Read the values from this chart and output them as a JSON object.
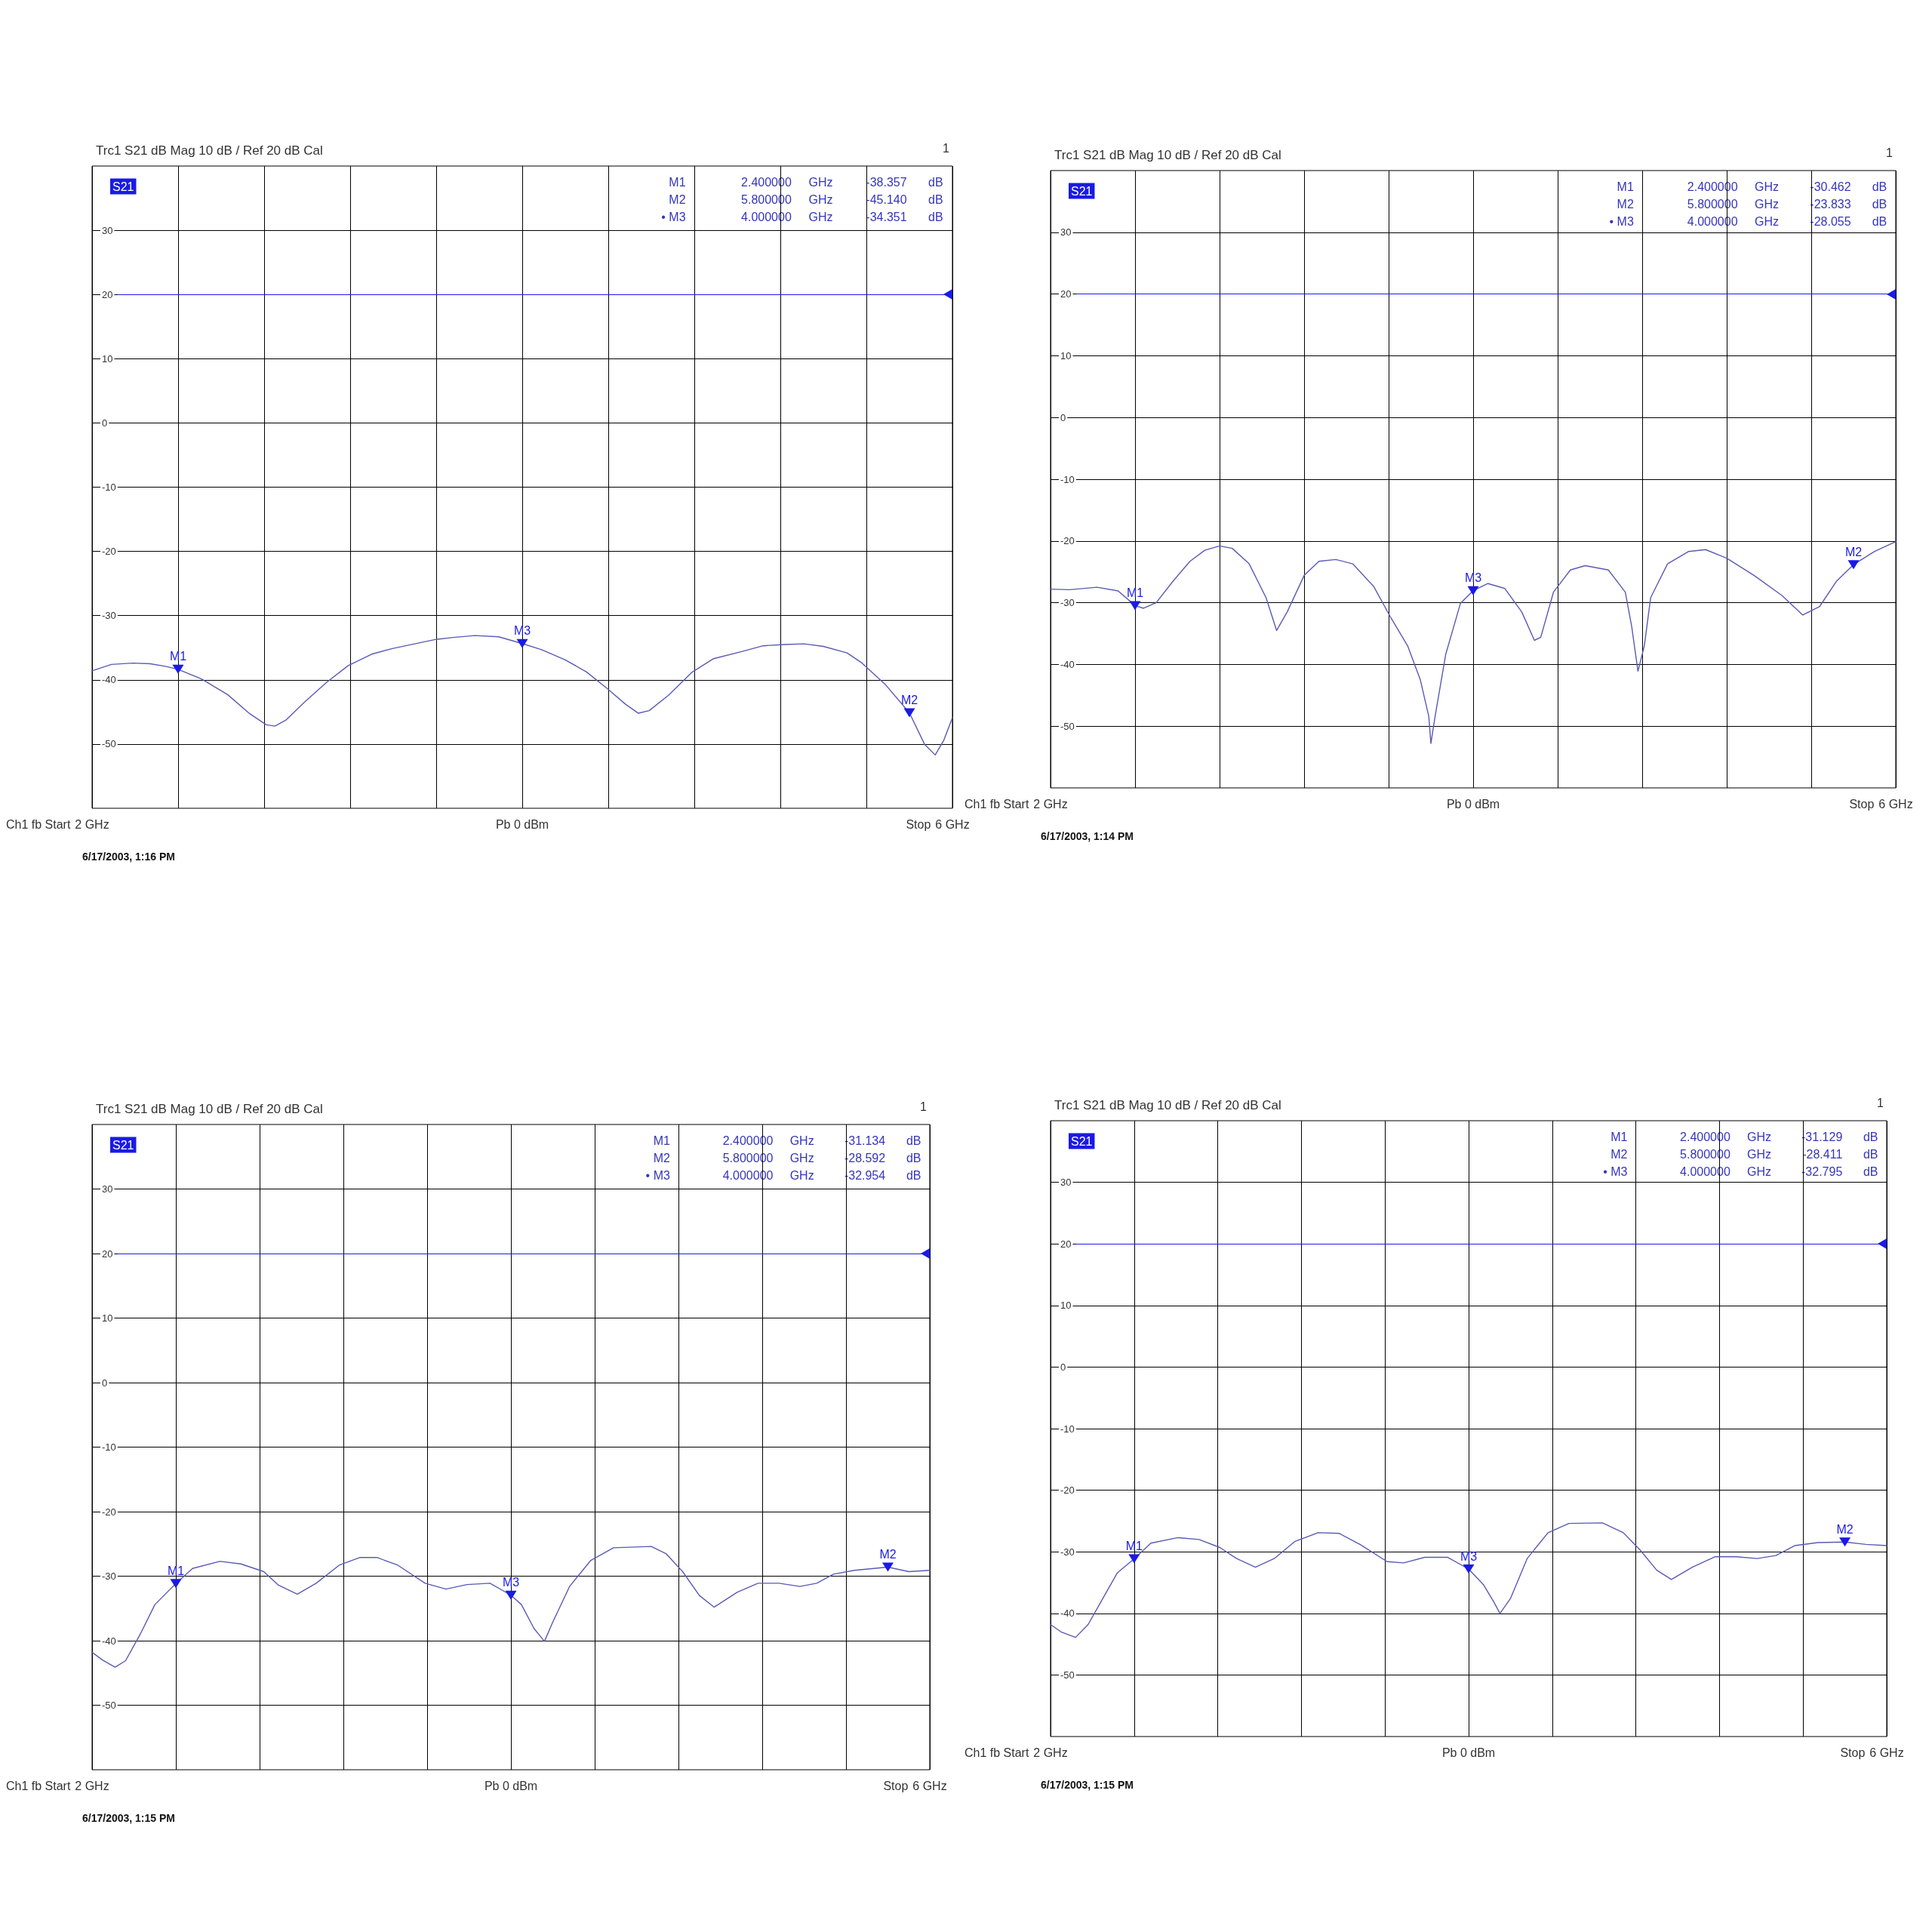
{
  "chart_data": [
    {
      "type": "line",
      "title": "Trc1 S21 dB Mag 10 dB / Ref 20 dB Cal",
      "xlabel": "Pb 0 dBm",
      "xlim": [
        2,
        6
      ],
      "xticks": [
        {
          "value": 2,
          "label": "2 GHz"
        },
        {
          "value": 2.4,
          "label": null
        },
        {
          "value": 2.8,
          "label": null
        },
        {
          "value": 3.2,
          "label": null
        },
        {
          "value": 3.6,
          "label": null
        },
        {
          "value": 4.0,
          "label": null
        },
        {
          "value": 4.4,
          "label": null
        },
        {
          "value": 4.8,
          "label": null
        },
        {
          "value": 5.2,
          "label": null
        },
        {
          "value": 5.6,
          "label": null
        },
        {
          "value": 6,
          "label": "6 GHz"
        }
      ],
      "ylim": [
        -60,
        40
      ],
      "yticks": [
        -50,
        -40,
        -30,
        -20,
        -10,
        0,
        10,
        20,
        30
      ],
      "grid": true,
      "marker": "none",
      "line_style": "solid",
      "series": [
        {
          "color": "#5a5ab4",
          "x": [
            2.0,
            2.09,
            2.19,
            2.27,
            2.34,
            2.4,
            2.51,
            2.63,
            2.73,
            2.81,
            2.85,
            2.9,
            2.99,
            3.09,
            3.19,
            3.3,
            3.4,
            3.5,
            3.6,
            3.68,
            3.78,
            3.89,
            4.0,
            4.09,
            4.2,
            4.3,
            4.4,
            4.48,
            4.54,
            4.59,
            4.68,
            4.79,
            4.89,
            5.02,
            5.12,
            5.22,
            5.31,
            5.4,
            5.51,
            5.58,
            5.69,
            5.8,
            5.87,
            5.92,
            5.96,
            6.0
          ],
          "values": [
            -38.6,
            -37.6,
            -37.4,
            -37.5,
            -37.9,
            -38.357,
            -39.9,
            -42.3,
            -45.2,
            -47.0,
            -47.2,
            -46.3,
            -43.4,
            -40.4,
            -37.8,
            -36.0,
            -35.1,
            -34.4,
            -33.7,
            -33.4,
            -33.1,
            -33.3,
            -34.351,
            -35.3,
            -36.9,
            -38.8,
            -41.5,
            -43.8,
            -45.2,
            -44.8,
            -42.4,
            -38.8,
            -36.7,
            -35.6,
            -34.7,
            -34.5,
            -34.4,
            -34.8,
            -35.8,
            -37.4,
            -40.8,
            -45.14,
            -50.0,
            -51.7,
            -49.4,
            -45.9
          ]
        }
      ],
      "ref_lines": [
        {
          "axis": "y",
          "value": 20,
          "color": "#1a1ae6"
        }
      ],
      "annotations": [
        {
          "text": "M1",
          "x": 2.4,
          "y": -38.357
        },
        {
          "text": "M2",
          "x": 5.8,
          "y": -45.14
        },
        {
          "text": "M3",
          "x": 4.0,
          "y": -34.351
        },
        "M1 2.400000 GHz -38.357 dB",
        "M2 5.800000 GHz -45.140 dB",
        "• M3 4.000000 GHz -34.351 dB",
        "S21",
        "1",
        "Ch1 fb Start",
        "Stop",
        "6/17/2003, 1:16 PM"
      ]
    },
    {
      "type": "line",
      "title": "Trc1 S21 dB Mag 10 dB / Ref 20 dB Cal",
      "xlabel": "Pb 0 dBm",
      "xlim": [
        2,
        6
      ],
      "xticks": [
        {
          "value": 2,
          "label": "2 GHz"
        },
        {
          "value": 2.4,
          "label": null
        },
        {
          "value": 2.8,
          "label": null
        },
        {
          "value": 3.2,
          "label": null
        },
        {
          "value": 3.6,
          "label": null
        },
        {
          "value": 4.0,
          "label": null
        },
        {
          "value": 4.4,
          "label": null
        },
        {
          "value": 4.8,
          "label": null
        },
        {
          "value": 5.2,
          "label": null
        },
        {
          "value": 5.6,
          "label": null
        },
        {
          "value": 6,
          "label": "6 GHz"
        }
      ],
      "ylim": [
        -60,
        40
      ],
      "yticks": [
        -50,
        -40,
        -30,
        -20,
        -10,
        0,
        10,
        20,
        30
      ],
      "grid": true,
      "marker": "none",
      "line_style": "solid",
      "series": [
        {
          "color": "#5a5ab4",
          "x": [
            2.0,
            2.09,
            2.22,
            2.32,
            2.4,
            2.44,
            2.5,
            2.58,
            2.66,
            2.73,
            2.8,
            2.86,
            2.94,
            3.02,
            3.07,
            3.12,
            3.2,
            3.27,
            3.35,
            3.43,
            3.53,
            3.61,
            3.69,
            3.75,
            3.79,
            3.8,
            3.82,
            3.87,
            3.94,
            4.0,
            4.07,
            4.15,
            4.23,
            4.29,
            4.32,
            4.38,
            4.46,
            4.53,
            4.64,
            4.72,
            4.75,
            4.78,
            4.81,
            4.84,
            4.92,
            5.02,
            5.1,
            5.2,
            5.33,
            5.46,
            5.56,
            5.64,
            5.72,
            5.8,
            5.9,
            6.0
          ],
          "values": [
            -27.8,
            -27.9,
            -27.5,
            -28.1,
            -30.462,
            -30.9,
            -30.0,
            -26.5,
            -23.3,
            -21.5,
            -20.8,
            -21.2,
            -23.7,
            -29.2,
            -34.5,
            -31.5,
            -25.6,
            -23.3,
            -23.0,
            -23.7,
            -27.4,
            -32.4,
            -37.0,
            -42.5,
            -48.4,
            -52.8,
            -48.4,
            -38.4,
            -30.1,
            -28.055,
            -26.9,
            -27.7,
            -31.5,
            -36.1,
            -35.6,
            -28.3,
            -24.7,
            -24.0,
            -24.7,
            -28.3,
            -33.8,
            -41.1,
            -37.0,
            -29.2,
            -23.7,
            -21.7,
            -21.4,
            -22.8,
            -25.6,
            -28.8,
            -32.0,
            -30.6,
            -26.5,
            -23.833,
            -21.7,
            -20.1
          ]
        }
      ],
      "ref_lines": [
        {
          "axis": "y",
          "value": 20,
          "color": "#1a1ae6"
        }
      ],
      "annotations": [
        {
          "text": "M1",
          "x": 2.4,
          "y": -30.462
        },
        {
          "text": "M2",
          "x": 5.8,
          "y": -23.833
        },
        {
          "text": "M3",
          "x": 4.0,
          "y": -28.055
        },
        "M1 2.400000 GHz -30.462 dB",
        "M2 5.800000 GHz -23.833 dB",
        "• M3 4.000000 GHz -28.055 dB",
        "S21",
        "1",
        "Ch1 fb Start",
        "Stop",
        "6/17/2003, 1:14 PM"
      ]
    },
    {
      "type": "line",
      "title": "Trc1 S21 dB Mag 10 dB / Ref 20 dB Cal",
      "xlabel": "Pb 0 dBm",
      "xlim": [
        2,
        6
      ],
      "xticks": [
        {
          "value": 2,
          "label": "2 GHz"
        },
        {
          "value": 2.4,
          "label": null
        },
        {
          "value": 2.8,
          "label": null
        },
        {
          "value": 3.2,
          "label": null
        },
        {
          "value": 3.6,
          "label": null
        },
        {
          "value": 4.0,
          "label": null
        },
        {
          "value": 4.4,
          "label": null
        },
        {
          "value": 4.8,
          "label": null
        },
        {
          "value": 5.2,
          "label": null
        },
        {
          "value": 5.6,
          "label": null
        },
        {
          "value": 6,
          "label": "6 GHz"
        }
      ],
      "ylim": [
        -60,
        40
      ],
      "yticks": [
        -50,
        -40,
        -30,
        -20,
        -10,
        0,
        10,
        20,
        30
      ],
      "grid": true,
      "marker": "none",
      "line_style": "solid",
      "series": [
        {
          "color": "#5a5ab4",
          "x": [
            2.0,
            2.05,
            2.11,
            2.16,
            2.23,
            2.3,
            2.4,
            2.48,
            2.61,
            2.71,
            2.82,
            2.89,
            2.98,
            3.07,
            3.18,
            3.28,
            3.36,
            3.46,
            3.59,
            3.69,
            3.79,
            3.9,
            4.0,
            4.05,
            4.11,
            4.16,
            4.2,
            4.28,
            4.38,
            4.49,
            4.67,
            4.74,
            4.82,
            4.9,
            4.97,
            5.08,
            5.18,
            5.28,
            5.38,
            5.46,
            5.54,
            5.64,
            5.8,
            5.9,
            6.0
          ],
          "values": [
            -41.8,
            -43.0,
            -44.1,
            -43.1,
            -39.0,
            -34.4,
            -31.134,
            -28.8,
            -27.7,
            -28.1,
            -29.3,
            -31.4,
            -32.8,
            -31.1,
            -28.3,
            -27.1,
            -27.1,
            -28.3,
            -31.1,
            -32.0,
            -31.3,
            -31.1,
            -32.954,
            -34.4,
            -38.1,
            -40.1,
            -37.1,
            -31.6,
            -27.6,
            -25.6,
            -25.4,
            -26.5,
            -29.3,
            -33.0,
            -34.8,
            -32.5,
            -31.1,
            -31.1,
            -31.6,
            -31.1,
            -29.7,
            -29.1,
            -28.592,
            -29.3,
            -29.1
          ]
        }
      ],
      "ref_lines": [
        {
          "axis": "y",
          "value": 20,
          "color": "#1a1ae6"
        }
      ],
      "annotations": [
        {
          "text": "M1",
          "x": 2.4,
          "y": -31.134
        },
        {
          "text": "M2",
          "x": 5.8,
          "y": -28.592
        },
        {
          "text": "M3",
          "x": 4.0,
          "y": -32.954
        },
        "M1 2.400000 GHz -31.134 dB",
        "M2 5.800000 GHz -28.592 dB",
        "• M3 4.000000 GHz -32.954 dB",
        "S21",
        "1",
        "Ch1 fb Start",
        "Stop",
        "6/17/2003, 1:15 PM"
      ]
    },
    {
      "type": "line",
      "title": "Trc1 S21 dB Mag 10 dB / Ref 20 dB Cal",
      "xlabel": "Pb 0 dBm",
      "xlim": [
        2,
        6
      ],
      "xticks": [
        {
          "value": 2,
          "label": "2 GHz"
        },
        {
          "value": 2.4,
          "label": null
        },
        {
          "value": 2.8,
          "label": null
        },
        {
          "value": 3.2,
          "label": null
        },
        {
          "value": 3.6,
          "label": null
        },
        {
          "value": 4.0,
          "label": null
        },
        {
          "value": 4.4,
          "label": null
        },
        {
          "value": 4.8,
          "label": null
        },
        {
          "value": 5.2,
          "label": null
        },
        {
          "value": 5.6,
          "label": null
        },
        {
          "value": 6,
          "label": "6 GHz"
        }
      ],
      "ylim": [
        -60,
        40
      ],
      "yticks": [
        -50,
        -40,
        -30,
        -20,
        -10,
        0,
        10,
        20,
        30
      ],
      "grid": true,
      "marker": "none",
      "line_style": "solid",
      "series": [
        {
          "color": "#5a5ab4",
          "x": [
            2.0,
            2.05,
            2.12,
            2.18,
            2.25,
            2.32,
            2.4,
            2.48,
            2.61,
            2.71,
            2.81,
            2.89,
            2.98,
            3.07,
            3.17,
            3.28,
            3.38,
            3.48,
            3.61,
            3.69,
            3.79,
            3.9,
            4.0,
            4.07,
            4.12,
            4.15,
            4.2,
            4.28,
            4.38,
            4.48,
            4.64,
            4.74,
            4.82,
            4.9,
            4.97,
            5.07,
            5.18,
            5.28,
            5.38,
            5.47,
            5.56,
            5.67,
            5.8,
            5.9,
            6.0
          ],
          "values": [
            -41.8,
            -43.0,
            -43.9,
            -41.8,
            -37.6,
            -33.4,
            -31.129,
            -28.6,
            -27.7,
            -28.0,
            -29.3,
            -31.1,
            -32.5,
            -31.1,
            -28.3,
            -26.9,
            -27.0,
            -28.8,
            -31.6,
            -31.8,
            -30.9,
            -30.9,
            -32.795,
            -35.3,
            -38.1,
            -40.0,
            -37.6,
            -31.1,
            -26.9,
            -25.4,
            -25.3,
            -26.9,
            -29.7,
            -33.0,
            -34.5,
            -32.5,
            -30.8,
            -30.8,
            -31.1,
            -30.6,
            -29.0,
            -28.5,
            -28.411,
            -28.8,
            -29.0
          ]
        }
      ],
      "ref_lines": [
        {
          "axis": "y",
          "value": 20,
          "color": "#1a1ae6"
        }
      ],
      "annotations": [
        {
          "text": "M1",
          "x": 2.4,
          "y": -31.129
        },
        {
          "text": "M2",
          "x": 5.8,
          "y": -28.411
        },
        {
          "text": "M3",
          "x": 4.0,
          "y": -32.795
        },
        "M1 2.400000 GHz -31.129 dB",
        "M2 5.800000 GHz -28.411 dB",
        "• M3 4.000000 GHz -32.795 dB",
        "S21",
        "1",
        "Ch1 fb Start",
        "Stop",
        "6/17/2003, 1:15 PM"
      ]
    }
  ]
}
